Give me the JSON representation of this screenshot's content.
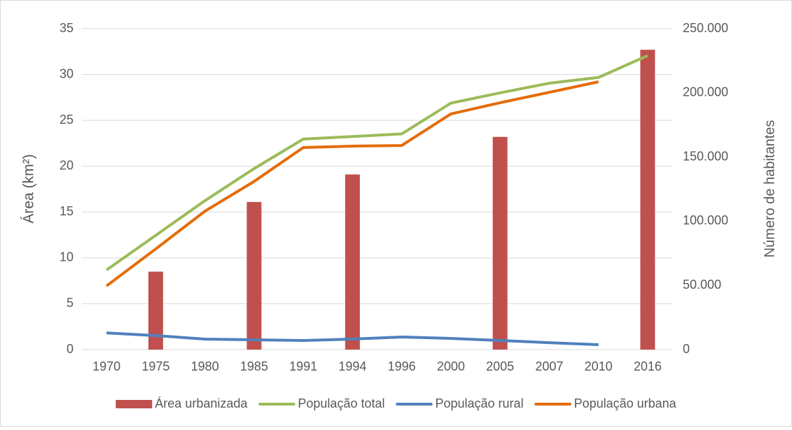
{
  "chart_data": {
    "type": "combo",
    "categories": [
      "1970",
      "1975",
      "1980",
      "1985",
      "1991",
      "1994",
      "1996",
      "2000",
      "2005",
      "2007",
      "2010",
      "2016"
    ],
    "y_label": "Área (km²)",
    "y2_label": "Número de habitantes",
    "ylim": [
      0,
      35
    ],
    "yticks": [
      0,
      5,
      10,
      15,
      20,
      25,
      30,
      35
    ],
    "y2lim": [
      0,
      250000
    ],
    "y2ticks": [
      0,
      {
        "value": 50000,
        "label": "50.000"
      },
      {
        "value": 100000,
        "label": "100.000"
      },
      {
        "value": 150000,
        "label": "150.000"
      },
      {
        "value": 200000,
        "label": "200.000"
      },
      {
        "value": 250000,
        "label": "250.000"
      }
    ],
    "grid": true,
    "legend": "bottom",
    "series": [
      {
        "name": "Área urbanizada",
        "type": "bar",
        "color": "#c0504d",
        "values": [
          null,
          8.5,
          null,
          16.1,
          null,
          19.1,
          null,
          null,
          23.2,
          null,
          null,
          32.7
        ]
      },
      {
        "name": "População total",
        "type": "line",
        "axis": "y2",
        "color": "#9bbb59",
        "values": [
          62000,
          89000,
          116000,
          141000,
          164000,
          166000,
          168000,
          192000,
          200000,
          207500,
          212000,
          229000
        ]
      },
      {
        "name": "População rural",
        "type": "line",
        "axis": "y2",
        "color": "#4f81bd",
        "values": [
          13000,
          10900,
          8200,
          7600,
          7100,
          8200,
          9800,
          8700,
          7100,
          5400,
          3800,
          null
        ]
      },
      {
        "name": "População urbana",
        "type": "line",
        "axis": "y2",
        "color": "#e46c0a",
        "values": [
          49600,
          78400,
          107800,
          131000,
          157400,
          158500,
          159000,
          183600,
          192300,
          200400,
          208600,
          null
        ]
      }
    ]
  }
}
